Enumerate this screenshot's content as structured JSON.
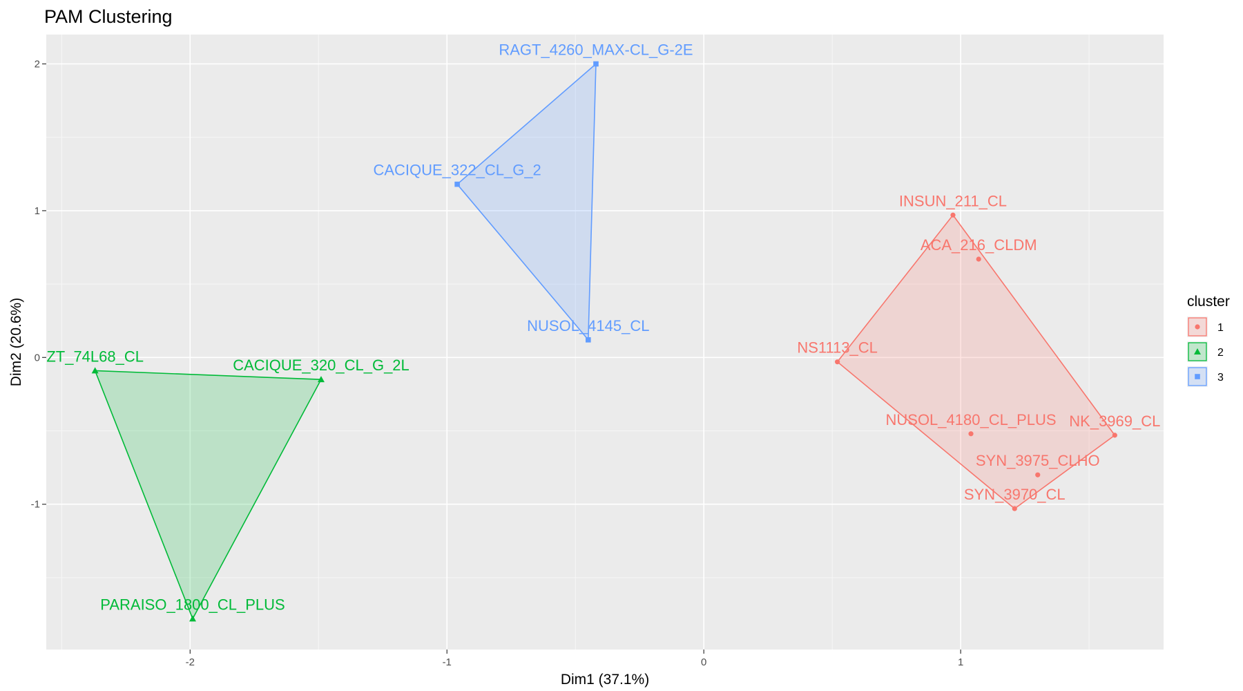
{
  "chart_data": {
    "type": "scatter",
    "title": "PAM Clustering",
    "xlabel": "Dim1 (37.1%)",
    "ylabel": "Dim2 (20.6%)",
    "xlim": [
      -2.56,
      1.79
    ],
    "ylim": [
      -1.99,
      2.2
    ],
    "xticks": [
      -2,
      -1,
      0,
      1
    ],
    "yticks": [
      -1,
      0,
      1,
      2
    ],
    "grid": true,
    "legend": {
      "title": "cluster",
      "position": "right",
      "entries": [
        "1",
        "2",
        "3"
      ]
    },
    "series": [
      {
        "name": "1",
        "color": "#F8766D",
        "marker": "circle",
        "hull": [
          "INSUN_211_CL",
          "NK_3969_CL",
          "SYN_3970_CL",
          "NS1113_CL"
        ],
        "points": [
          {
            "label": "INSUN_211_CL",
            "x": 0.97,
            "y": 0.97
          },
          {
            "label": "ACA_216_CLDM",
            "x": 1.07,
            "y": 0.67
          },
          {
            "label": "NS1113_CL",
            "x": 0.52,
            "y": -0.03
          },
          {
            "label": "NUSOL_4180_CL_PLUS",
            "x": 1.04,
            "y": -0.52
          },
          {
            "label": "NK_3969_CL",
            "x": 1.6,
            "y": -0.53
          },
          {
            "label": "SYN_3975_CLHO",
            "x": 1.3,
            "y": -0.8
          },
          {
            "label": "SYN_3970_CL",
            "x": 1.21,
            "y": -1.03
          }
        ]
      },
      {
        "name": "2",
        "color": "#00BA38",
        "marker": "triangle",
        "hull": [
          "ZT_74L68_CL",
          "CACIQUE_320_CL_G_2L",
          "PARAISO_1800_CL_PLUS"
        ],
        "points": [
          {
            "label": "ZT_74L68_CL",
            "x": -2.37,
            "y": -0.09
          },
          {
            "label": "CACIQUE_320_CL_G_2L",
            "x": -1.49,
            "y": -0.15
          },
          {
            "label": "PARAISO_1800_CL_PLUS",
            "x": -1.99,
            "y": -1.78
          }
        ]
      },
      {
        "name": "3",
        "color": "#619CFF",
        "marker": "square",
        "hull": [
          "RAGT_4260_MAX-CL_G-2E",
          "CACIQUE_322_CL_G_2",
          "NUSOL_4145_CL"
        ],
        "points": [
          {
            "label": "RAGT_4260_MAX-CL_G-2E",
            "x": -0.42,
            "y": 2.0
          },
          {
            "label": "CACIQUE_322_CL_G_2",
            "x": -0.96,
            "y": 1.18
          },
          {
            "label": "NUSOL_4145_CL",
            "x": -0.45,
            "y": 0.12
          }
        ]
      }
    ]
  }
}
